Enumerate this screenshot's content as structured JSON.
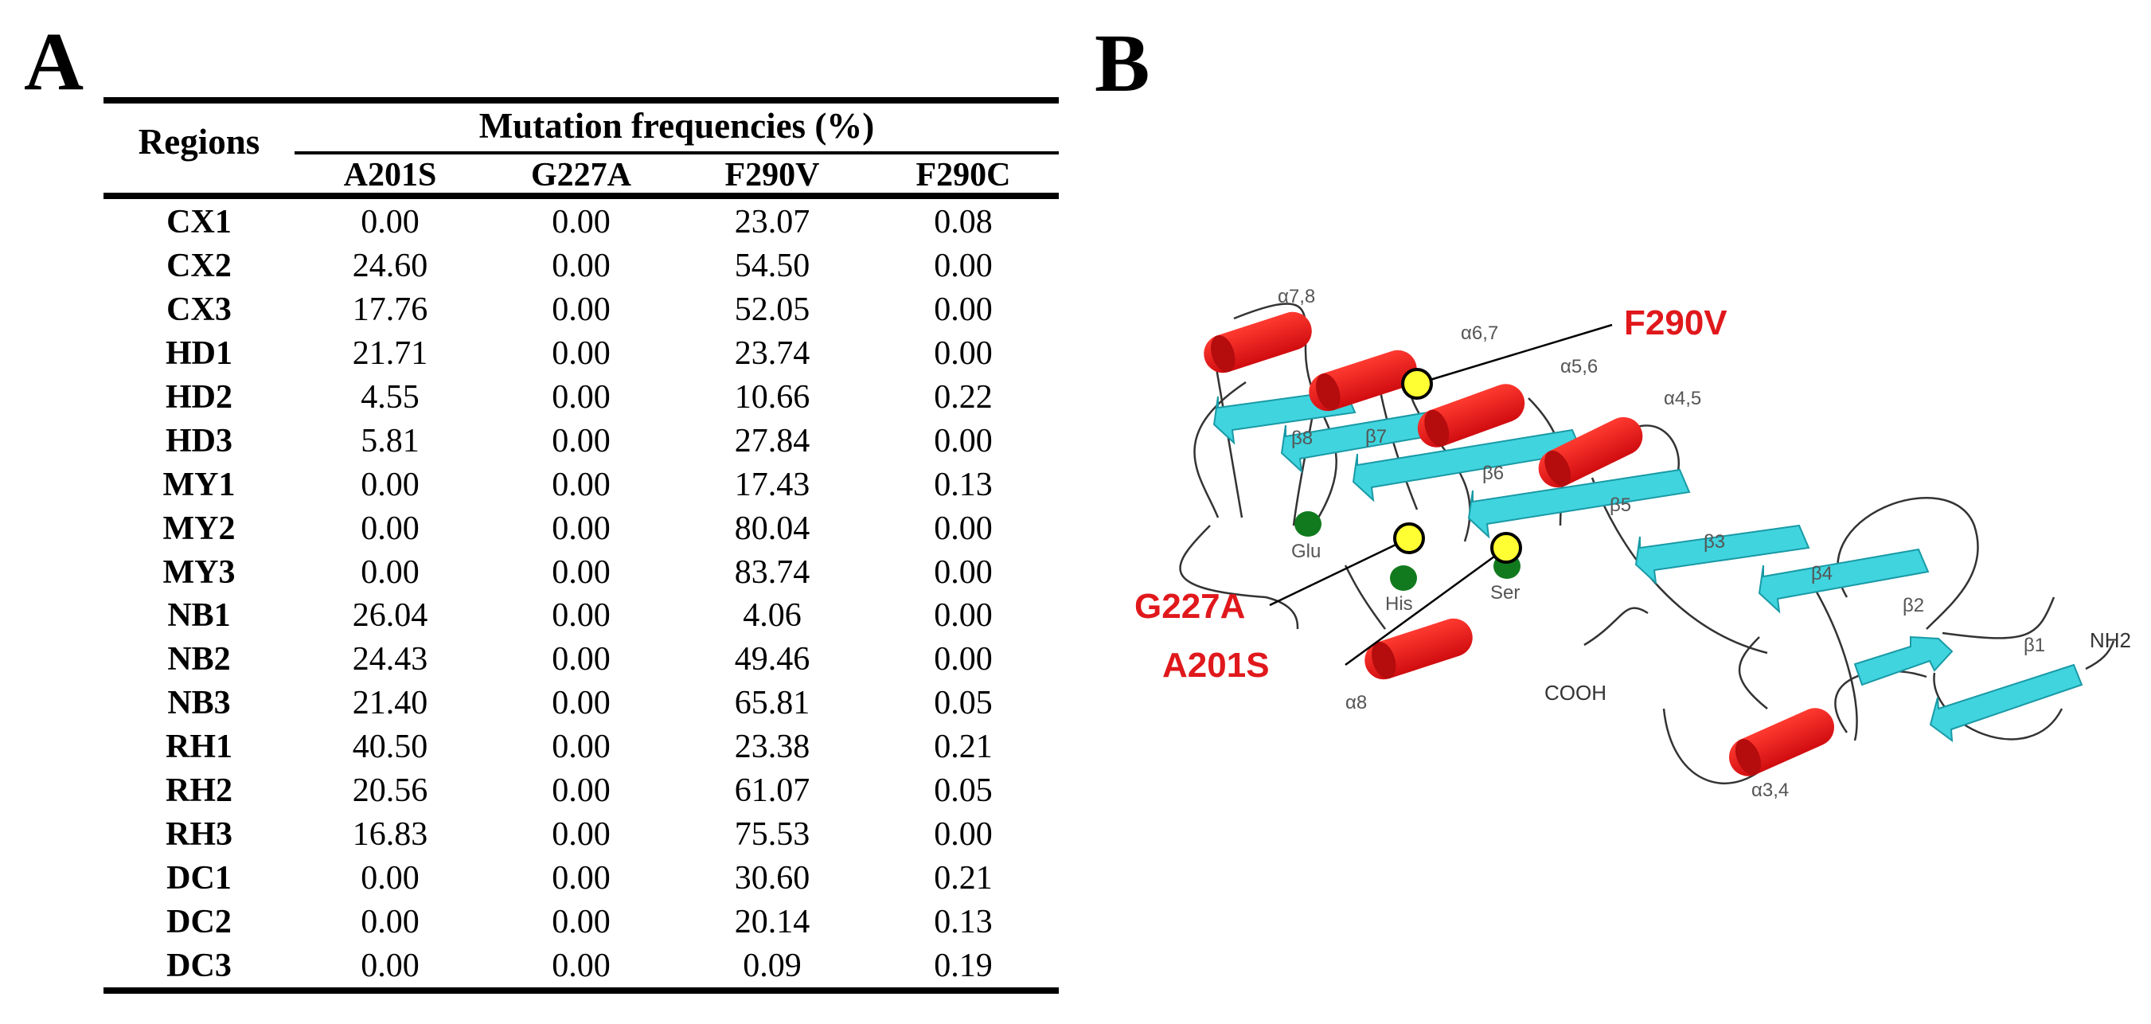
{
  "panel_a": {
    "letter": "A",
    "table": {
      "region_header": "Regions",
      "group_header": "Mutation frequencies  (%)",
      "columns": [
        "A201S",
        "G227A",
        "F290V",
        "F290C"
      ],
      "rows": [
        {
          "region": "CX1",
          "values": [
            "0.00",
            "0.00",
            "23.07",
            "0.08"
          ]
        },
        {
          "region": "CX2",
          "values": [
            "24.60",
            "0.00",
            "54.50",
            "0.00"
          ]
        },
        {
          "region": "CX3",
          "values": [
            "17.76",
            "0.00",
            "52.05",
            "0.00"
          ]
        },
        {
          "region": "HD1",
          "values": [
            "21.71",
            "0.00",
            "23.74",
            "0.00"
          ]
        },
        {
          "region": "HD2",
          "values": [
            "4.55",
            "0.00",
            "10.66",
            "0.22"
          ]
        },
        {
          "region": "HD3",
          "values": [
            "5.81",
            "0.00",
            "27.84",
            "0.00"
          ]
        },
        {
          "region": "MY1",
          "values": [
            "0.00",
            "0.00",
            "17.43",
            "0.13"
          ]
        },
        {
          "region": "MY2",
          "values": [
            "0.00",
            "0.00",
            "80.04",
            "0.00"
          ]
        },
        {
          "region": "MY3",
          "values": [
            "0.00",
            "0.00",
            "83.74",
            "0.00"
          ]
        },
        {
          "region": "NB1",
          "values": [
            "26.04",
            "0.00",
            "4.06",
            "0.00"
          ]
        },
        {
          "region": "NB2",
          "values": [
            "24.43",
            "0.00",
            "49.46",
            "0.00"
          ]
        },
        {
          "region": "NB3",
          "values": [
            "21.40",
            "0.00",
            "65.81",
            "0.05"
          ]
        },
        {
          "region": "RH1",
          "values": [
            "40.50",
            "0.00",
            "23.38",
            "0.21"
          ]
        },
        {
          "region": "RH2",
          "values": [
            "20.56",
            "0.00",
            "61.07",
            "0.05"
          ]
        },
        {
          "region": "RH3",
          "values": [
            "16.83",
            "0.00",
            "75.53",
            "0.00"
          ]
        },
        {
          "region": "DC1",
          "values": [
            "0.00",
            "0.00",
            "30.60",
            "0.21"
          ]
        },
        {
          "region": "DC2",
          "values": [
            "0.00",
            "0.00",
            "20.14",
            "0.13"
          ]
        },
        {
          "region": "DC3",
          "values": [
            "0.00",
            "0.00",
            "0.09",
            "0.19"
          ]
        }
      ]
    }
  },
  "panel_b": {
    "letter": "B",
    "mutation_labels": {
      "f290v": "F290V",
      "g227a": "G227A",
      "a201s": "A201S"
    },
    "helix_labels": {
      "a78": "α7,8",
      "a67": "α6,7",
      "a56": "α5,6",
      "a45": "α4,5",
      "a8": "α8",
      "a34": "α3,4"
    },
    "strand_labels": {
      "b8": "β8",
      "b7": "β7",
      "b6": "β6",
      "b5": "β5",
      "b3": "β3",
      "b4": "β4",
      "b2": "β2",
      "b1": "β1"
    },
    "residue_labels": {
      "glu": "Glu",
      "his": "His",
      "ser": "Ser"
    },
    "terminus_labels": {
      "c": "COOH",
      "n": "NH2"
    },
    "colors": {
      "helix": "#e8161b",
      "strand": "#40d4de",
      "residue": "#127a1e",
      "mutation": "#ffff33",
      "label": "#e0181c"
    }
  }
}
